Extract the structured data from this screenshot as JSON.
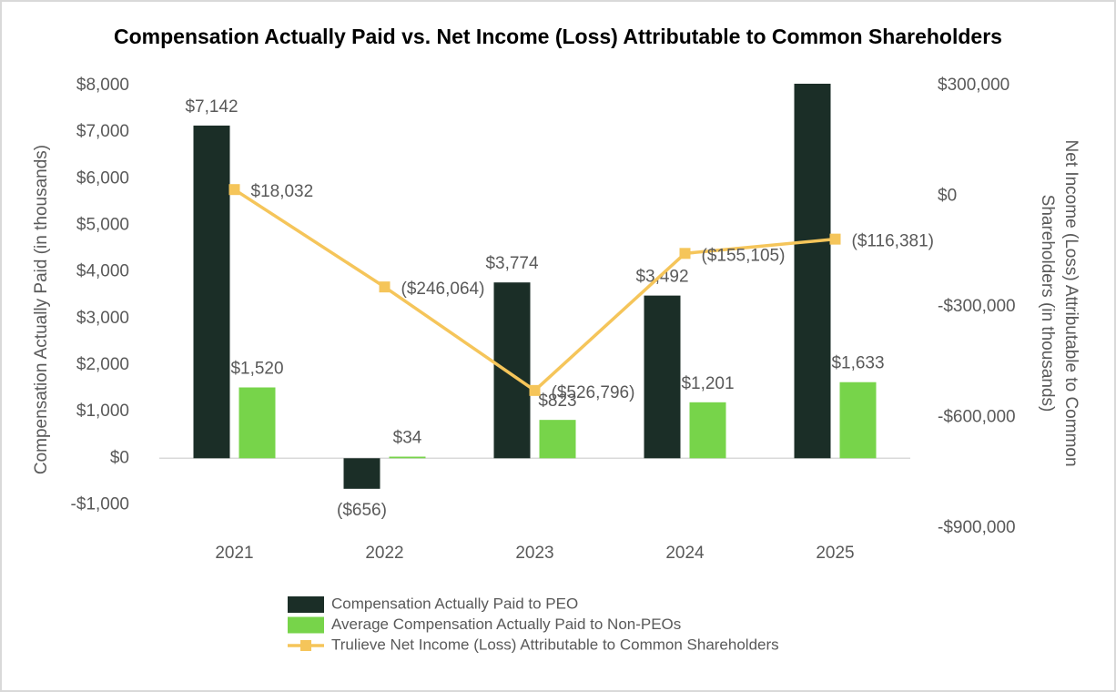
{
  "chart_data": {
    "type": "bar-line",
    "title": "Compensation Actually Paid vs. Net Income (Loss) Attributable to Common Shareholders",
    "ylabel": "Compensation Actually Paid (in thousands)",
    "y2label": [
      "Net Income (Loss) Attributable to Common",
      "Shareholders (in thousands)"
    ],
    "categories": [
      "2021",
      "2022",
      "2023",
      "2024",
      "2025"
    ],
    "ylim": [
      -1500,
      8000
    ],
    "yticks": [
      {
        "value": -1000,
        "label": "-$1,000"
      },
      {
        "value": 0,
        "label": "$0"
      },
      {
        "value": 1000,
        "label": "$1,000"
      },
      {
        "value": 2000,
        "label": "$2,000"
      },
      {
        "value": 3000,
        "label": "$3,000"
      },
      {
        "value": 4000,
        "label": "$4,000"
      },
      {
        "value": 5000,
        "label": "$5,000"
      },
      {
        "value": 6000,
        "label": "$6,000"
      },
      {
        "value": 7000,
        "label": "$7,000"
      },
      {
        "value": 8000,
        "label": "$8,000"
      }
    ],
    "y2lim": [
      -900000,
      300000
    ],
    "y2ticks": [
      {
        "value": -900000,
        "label": "-$900,000"
      },
      {
        "value": -600000,
        "label": "-$600,000"
      },
      {
        "value": -300000,
        "label": "-$300,000"
      },
      {
        "value": 0,
        "label": "$0"
      },
      {
        "value": 300000,
        "label": "$300,000"
      }
    ],
    "series": [
      {
        "name": "Compensation Actually Paid to PEO",
        "type": "bar",
        "color": "#1b2e27",
        "values": [
          7142,
          -656,
          3774,
          3492,
          8040
        ],
        "value_labels": [
          "$7,142",
          "($656)",
          "$3,774",
          "$3,492",
          null
        ]
      },
      {
        "name": "Average Compensation Actually Paid to Non-PEOs",
        "type": "bar",
        "color": "#77d44a",
        "values": [
          1520,
          34,
          823,
          1201,
          1633
        ],
        "value_labels": [
          "$1,520",
          "$34",
          "$823",
          "$1,201",
          "$1,633"
        ]
      },
      {
        "name": "Trulieve Net Income (Loss) Attributable to Common Shareholders",
        "type": "line",
        "axis": "y2",
        "color": "#f5c55a",
        "values": [
          18032,
          -246064,
          -526796,
          -155105,
          -116381
        ],
        "value_labels": [
          "$18,032",
          "($246,064)",
          "($526,796)",
          "($155,105)",
          "($116,381)"
        ]
      }
    ]
  }
}
